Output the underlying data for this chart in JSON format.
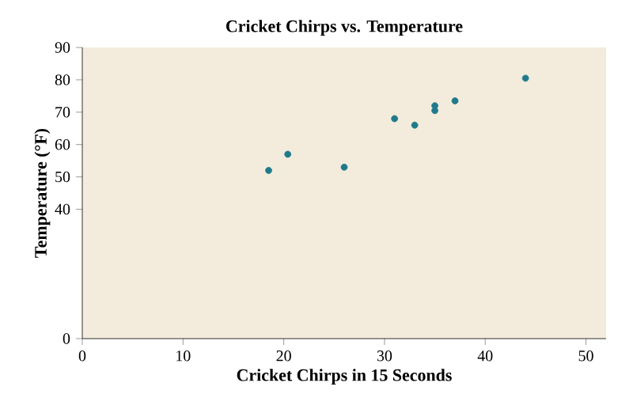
{
  "chart_data": {
    "type": "scatter",
    "title": "Cricket Chirps vs. Temperature",
    "xlabel": "Cricket Chirps in 15 Seconds",
    "ylabel": "Temperature (°F)",
    "x": [
      44,
      35,
      20.4,
      33,
      31,
      35,
      18.5,
      37,
      26
    ],
    "values": [
      80.5,
      70.5,
      57,
      66,
      68,
      72,
      52,
      73.5,
      53
    ],
    "color": "#1f7a8c",
    "grid": false,
    "xlim": [
      0,
      52
    ],
    "xticks": [
      0,
      10,
      20,
      30,
      40,
      50
    ],
    "ylim": [
      0,
      90
    ],
    "yticks": [
      0,
      40,
      50,
      60,
      70,
      80,
      90
    ]
  }
}
